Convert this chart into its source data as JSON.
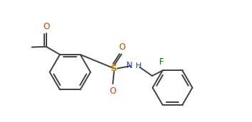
{
  "bg_color": "#ffffff",
  "line_color": "#404040",
  "atom_colors": {
    "O": "#cc4400",
    "N": "#2244bb",
    "S": "#cc8800",
    "F": "#007700",
    "C": "#404040"
  },
  "figsize": [
    3.53,
    1.72
  ],
  "dpi": 100,
  "lw": 1.4
}
